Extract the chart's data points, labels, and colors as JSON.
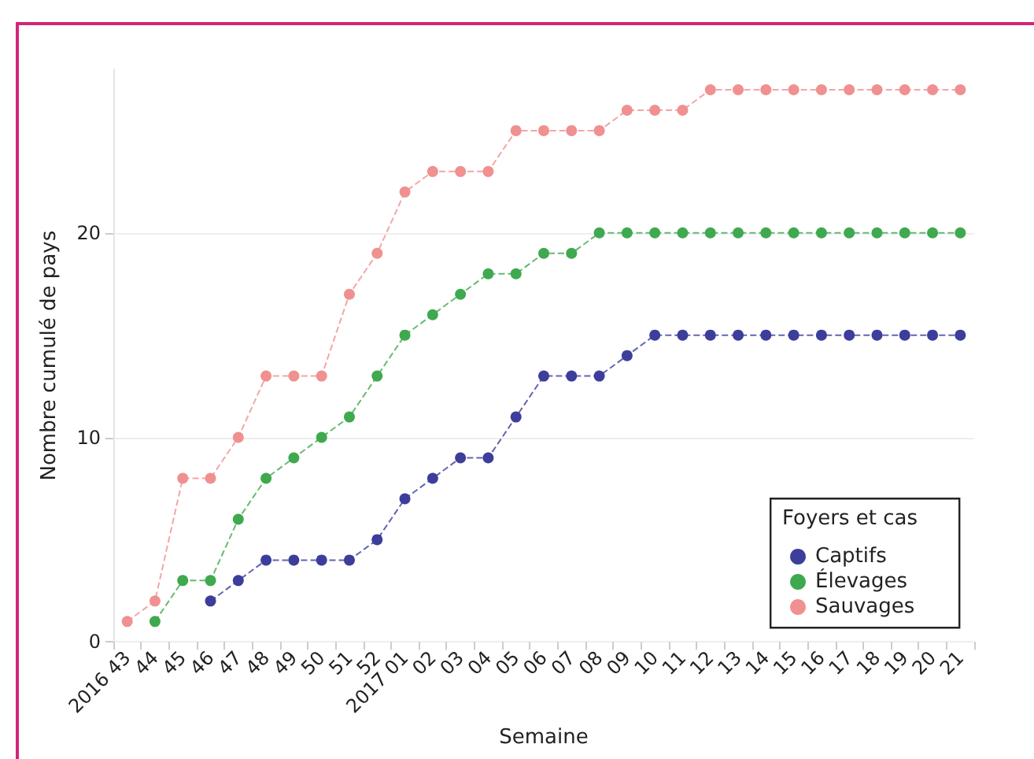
{
  "chart_data": {
    "type": "line",
    "xlabel": "Semaine",
    "ylabel": "Nombre cumulé de pays",
    "legend_title": "Foyers et cas",
    "categories": [
      "2016 43",
      "44",
      "45",
      "46",
      "47",
      "48",
      "49",
      "50",
      "51",
      "52",
      "2017 01",
      "02",
      "03",
      "04",
      "05",
      "06",
      "07",
      "08",
      "09",
      "10",
      "11",
      "12",
      "13",
      "14",
      "15",
      "16",
      "17",
      "18",
      "19",
      "20",
      "21"
    ],
    "series": [
      {
        "name": "Captifs",
        "color": "#3d3d9b",
        "values": [
          null,
          null,
          null,
          2,
          3,
          4,
          4,
          4,
          4,
          5,
          7,
          8,
          9,
          9,
          11,
          13,
          13,
          13,
          14,
          15,
          15,
          15,
          15,
          15,
          15,
          15,
          15,
          15,
          15,
          15,
          15
        ]
      },
      {
        "name": "Élevages",
        "color": "#3fa94f",
        "values": [
          null,
          1,
          3,
          3,
          6,
          8,
          9,
          10,
          11,
          13,
          15,
          16,
          17,
          18,
          18,
          19,
          19,
          20,
          20,
          20,
          20,
          20,
          20,
          20,
          20,
          20,
          20,
          20,
          20,
          20,
          20
        ]
      },
      {
        "name": "Sauvages",
        "color": "#f09090",
        "values": [
          1,
          2,
          8,
          8,
          10,
          13,
          13,
          13,
          17,
          19,
          22,
          23,
          23,
          23,
          25,
          25,
          25,
          25,
          26,
          26,
          26,
          27,
          27,
          27,
          27,
          27,
          27,
          27,
          27,
          27,
          27
        ]
      }
    ],
    "ylim": [
      0,
      28
    ],
    "yticks": [
      0,
      10,
      20
    ],
    "grid": "y",
    "legend": "bottom right",
    "marker": "circle",
    "line_style": "dashed"
  }
}
